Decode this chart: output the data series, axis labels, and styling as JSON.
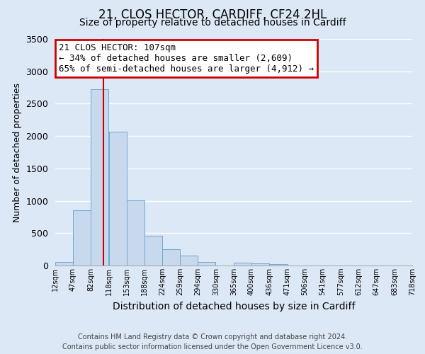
{
  "title": "21, CLOS HECTOR, CARDIFF, CF24 2HL",
  "subtitle": "Size of property relative to detached houses in Cardiff",
  "xlabel": "Distribution of detached houses by size in Cardiff",
  "ylabel": "Number of detached properties",
  "bar_left_edges": [
    12,
    47,
    82,
    118,
    153,
    188,
    224,
    259,
    294,
    330,
    365,
    400,
    436,
    471,
    506,
    541,
    577,
    612,
    647,
    683
  ],
  "bar_heights": [
    55,
    850,
    2720,
    2070,
    1010,
    455,
    250,
    150,
    60,
    0,
    45,
    30,
    20,
    0,
    0,
    0,
    0,
    0,
    0,
    0
  ],
  "bin_width": 35,
  "tick_labels": [
    "12sqm",
    "47sqm",
    "82sqm",
    "118sqm",
    "153sqm",
    "188sqm",
    "224sqm",
    "259sqm",
    "294sqm",
    "330sqm",
    "365sqm",
    "400sqm",
    "436sqm",
    "471sqm",
    "506sqm",
    "541sqm",
    "577sqm",
    "612sqm",
    "647sqm",
    "683sqm",
    "718sqm"
  ],
  "bar_color": "#c8d9ee",
  "bar_edge_color": "#6aaad4",
  "vline_x": 107,
  "vline_color": "#cc0000",
  "ylim": [
    0,
    3500
  ],
  "yticks": [
    0,
    500,
    1000,
    1500,
    2000,
    2500,
    3000,
    3500
  ],
  "annotation_title": "21 CLOS HECTOR: 107sqm",
  "annotation_line1": "← 34% of detached houses are smaller (2,609)",
  "annotation_line2": "65% of semi-detached houses are larger (4,912) →",
  "annotation_box_color": "#ffffff",
  "annotation_box_edge_color": "#cc0000",
  "footer_line1": "Contains HM Land Registry data © Crown copyright and database right 2024.",
  "footer_line2": "Contains public sector information licensed under the Open Government Licence v3.0.",
  "background_color": "#dce8f5",
  "plot_background_color": "#dce8f5",
  "grid_color": "#ffffff",
  "title_fontsize": 12,
  "subtitle_fontsize": 10,
  "ylabel_fontsize": 9,
  "xlabel_fontsize": 10,
  "footer_fontsize": 7,
  "annotation_fontsize": 9
}
